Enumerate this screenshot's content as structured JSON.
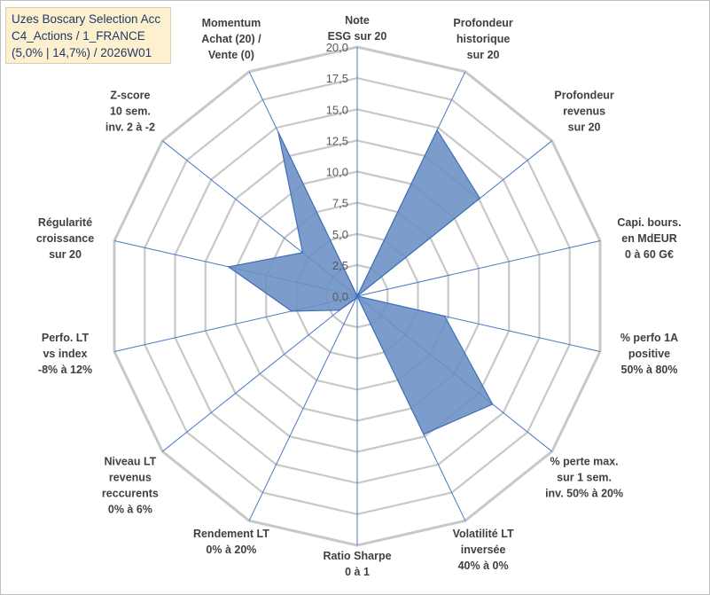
{
  "title_box": {
    "line1": "Uzes Boscary Selection Acc",
    "line2": "C4_Actions / 1_FRANCE",
    "line3": "(5,0% | 14,7%) / 2026W01"
  },
  "colors": {
    "series_fill": "#6a8fc4",
    "series_stroke": "#3f6fb6",
    "grid": "#c8c8c8",
    "spoke": "#4a78c2",
    "title_bg": "#fdf0cf"
  },
  "chart_data": {
    "type": "radar",
    "rmin": 0,
    "rmax": 20,
    "ticks": [
      "0,0",
      "2,5",
      "5,0",
      "7,5",
      "10,0",
      "12,5",
      "15,0",
      "17,5",
      "20,0"
    ],
    "tick_values": [
      0,
      2.5,
      5,
      7.5,
      10,
      12.5,
      15,
      17.5,
      20
    ],
    "axes": [
      {
        "lines": [
          "Note",
          "ESG sur 20"
        ]
      },
      {
        "lines": [
          "Profondeur",
          "historique",
          "sur 20"
        ]
      },
      {
        "lines": [
          "Profondeur",
          "revenus",
          "sur 20"
        ]
      },
      {
        "lines": [
          "Capi. bours.",
          "en MdEUR",
          "0 à 60 G€"
        ]
      },
      {
        "lines": [
          "% perfo 1A",
          "positive",
          "50% à 80%"
        ]
      },
      {
        "lines": [
          "% perte max.",
          "sur 1 sem.",
          "inv. 50% à 20%"
        ]
      },
      {
        "lines": [
          "Volatilité LT",
          "inversée",
          "40% à 0%"
        ]
      },
      {
        "lines": [
          "Ratio Sharpe",
          "0 à 1"
        ]
      },
      {
        "lines": [
          "Rendement LT",
          "0% à 20%"
        ]
      },
      {
        "lines": [
          "Niveau LT",
          "revenus",
          "reccurents",
          "0% à 6%"
        ]
      },
      {
        "lines": [
          "Perfo. LT",
          "vs index",
          "-8% à 12%"
        ]
      },
      {
        "lines": [
          "Régularité",
          "croissance",
          "sur 20"
        ]
      },
      {
        "lines": [
          "Z-score",
          "10 sem.",
          "inv. 2 à -2"
        ]
      },
      {
        "lines": [
          "Momentum",
          "Achat (20) /",
          "Vente (0)"
        ]
      }
    ],
    "values": [
      0,
      14.8,
      12.6,
      0,
      7.2,
      13.9,
      12.3,
      0,
      0.2,
      1.8,
      5.4,
      10.6,
      5.6,
      14.6
    ]
  }
}
